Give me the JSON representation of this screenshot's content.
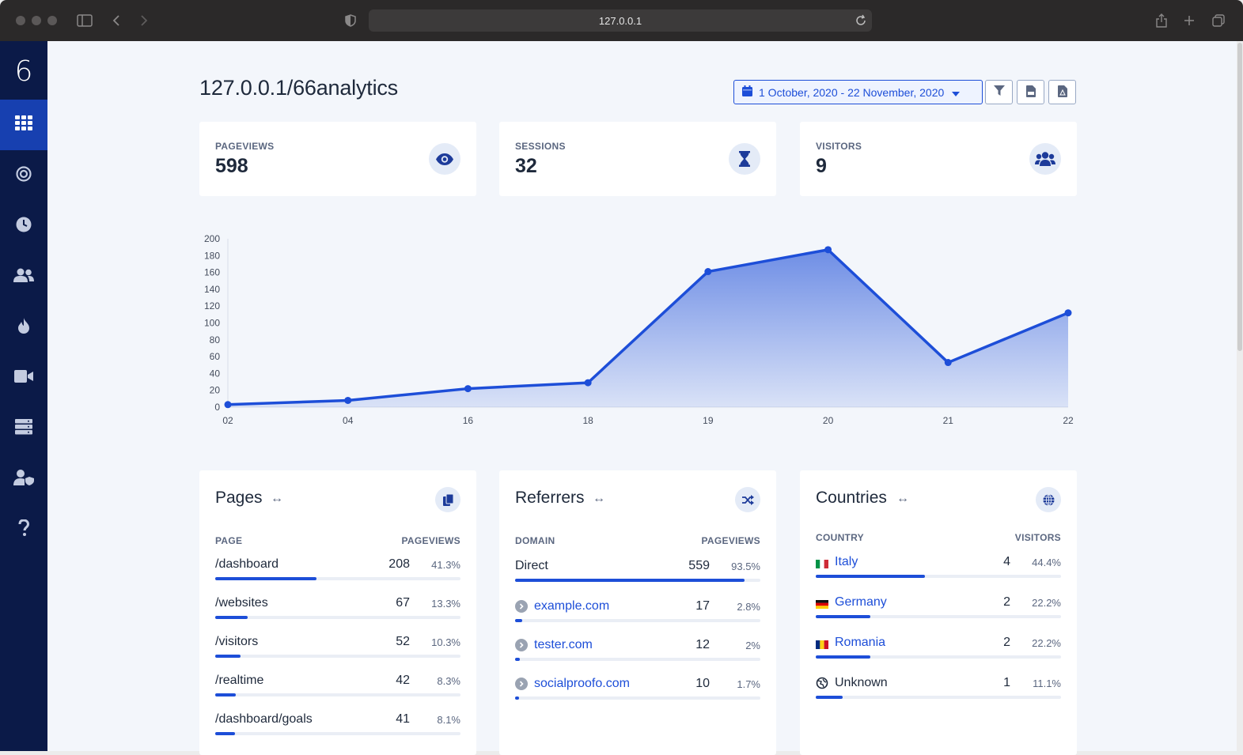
{
  "browser": {
    "url": "127.0.0.1"
  },
  "sidebar": {
    "logo": "6",
    "items": [
      {
        "name": "dashboard",
        "icon": "grid-icon",
        "active": true
      },
      {
        "name": "goals",
        "icon": "target-icon"
      },
      {
        "name": "realtime",
        "icon": "clock-icon"
      },
      {
        "name": "visitors",
        "icon": "users-icon"
      },
      {
        "name": "heatmaps",
        "icon": "fire-icon"
      },
      {
        "name": "replays",
        "icon": "video-icon"
      },
      {
        "name": "websites",
        "icon": "server-icon"
      },
      {
        "name": "team",
        "icon": "user-shield-icon"
      },
      {
        "name": "help",
        "icon": "question-icon"
      }
    ]
  },
  "header": {
    "title": "127.0.0.1/66analytics",
    "date_range": "1 October, 2020 - 22 November, 2020"
  },
  "stats": [
    {
      "label": "PAGEVIEWS",
      "value": "598",
      "icon": "eye-icon"
    },
    {
      "label": "SESSIONS",
      "value": "32",
      "icon": "hourglass-icon"
    },
    {
      "label": "VISITORS",
      "value": "9",
      "icon": "users-icon"
    }
  ],
  "chart_data": {
    "type": "area",
    "categories": [
      "02",
      "04",
      "16",
      "18",
      "19",
      "20",
      "21",
      "22"
    ],
    "values": [
      3,
      8,
      22,
      29,
      161,
      187,
      53,
      112
    ],
    "ylim": [
      0,
      200
    ],
    "yticks": [
      0,
      20,
      40,
      60,
      80,
      100,
      120,
      140,
      160,
      180,
      200
    ],
    "color": "#1d4ed8",
    "grid": false
  },
  "pages": {
    "title": "Pages",
    "col_left": "PAGE",
    "col_right": "PAGEVIEWS",
    "rows": [
      {
        "label": "/dashboard",
        "value": "208",
        "pct": "41.3%",
        "fill": 0.413
      },
      {
        "label": "/websites",
        "value": "67",
        "pct": "13.3%",
        "fill": 0.133
      },
      {
        "label": "/visitors",
        "value": "52",
        "pct": "10.3%",
        "fill": 0.103
      },
      {
        "label": "/realtime",
        "value": "42",
        "pct": "8.3%",
        "fill": 0.083
      },
      {
        "label": "/dashboard/goals",
        "value": "41",
        "pct": "8.1%",
        "fill": 0.081
      }
    ]
  },
  "referrers": {
    "title": "Referrers",
    "col_left": "DOMAIN",
    "col_right": "PAGEVIEWS",
    "rows": [
      {
        "label": "Direct",
        "value": "559",
        "pct": "93.5%",
        "fill": 0.935
      },
      {
        "label": "example.com",
        "value": "17",
        "pct": "2.8%",
        "fill": 0.028
      },
      {
        "label": "tester.com",
        "value": "12",
        "pct": "2%",
        "fill": 0.02
      },
      {
        "label": "socialproofo.com",
        "value": "10",
        "pct": "1.7%",
        "fill": 0.017
      }
    ]
  },
  "countries": {
    "title": "Countries",
    "col_left": "COUNTRY",
    "col_right": "VISITORS",
    "rows": [
      {
        "label": "Italy",
        "value": "4",
        "pct": "44.4%",
        "fill": 0.444
      },
      {
        "label": "Germany",
        "value": "2",
        "pct": "22.2%",
        "fill": 0.222
      },
      {
        "label": "Romania",
        "value": "2",
        "pct": "22.2%",
        "fill": 0.222
      },
      {
        "label": "Unknown",
        "value": "1",
        "pct": "11.1%",
        "fill": 0.111
      }
    ]
  }
}
